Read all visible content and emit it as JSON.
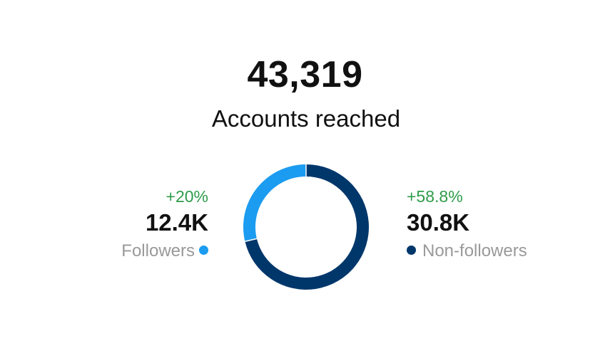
{
  "chart_data": {
    "type": "pie",
    "title": "43,319",
    "subtitle": "Accounts reached",
    "series": [
      {
        "name": "Followers",
        "value_label": "12.4K",
        "value": 12400,
        "change": "+20%"
      },
      {
        "name": "Non-followers",
        "value_label": "30.8K",
        "value": 30800,
        "change": "+58.8%"
      }
    ],
    "donut": true
  },
  "colors": {
    "followers": "#1b9cf0",
    "non_followers": "#00376b",
    "change_positive": "#2e9c4a",
    "muted_text": "#999999"
  }
}
